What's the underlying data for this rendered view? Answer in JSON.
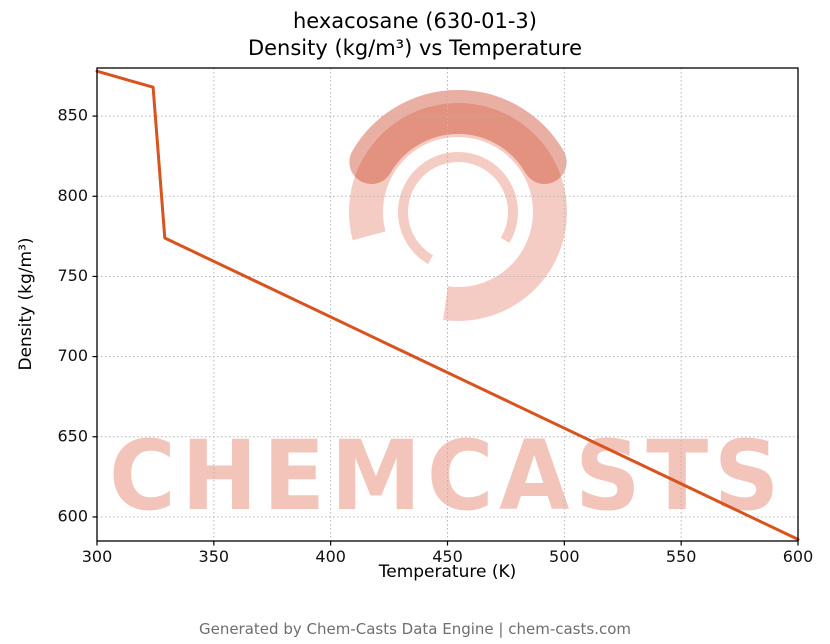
{
  "title": {
    "line1": "hexacosane (630-01-3)",
    "line2": "Density (kg/m³) vs Temperature"
  },
  "footer": "Generated by Chem-Casts Data Engine | chem-casts.com",
  "watermark": {
    "text": "CHEMCASTS",
    "text_color": "rgba(214,72,40,0.32)",
    "logo_color": "rgba(214,72,40,0.28)",
    "logo_accent_color": "rgba(200,55,25,0.40)"
  },
  "chart_data": {
    "type": "line",
    "title": "hexacosane (630-01-3) — Density (kg/m³) vs Temperature",
    "xlabel": "Temperature (K)",
    "ylabel": "Density (kg/m³)",
    "xlim": [
      300,
      600
    ],
    "ylim": [
      585,
      880
    ],
    "xticks": [
      300,
      350,
      400,
      450,
      500,
      550,
      600
    ],
    "yticks": [
      600,
      650,
      700,
      750,
      800,
      850
    ],
    "grid": true,
    "grid_style": "dotted",
    "grid_color": "#b5b5b5",
    "line_color": "#d9531e",
    "line_width": 3,
    "series": [
      {
        "name": "density",
        "points": [
          [
            300,
            878
          ],
          [
            324,
            868
          ],
          [
            329,
            774
          ],
          [
            600,
            586
          ]
        ]
      }
    ]
  }
}
